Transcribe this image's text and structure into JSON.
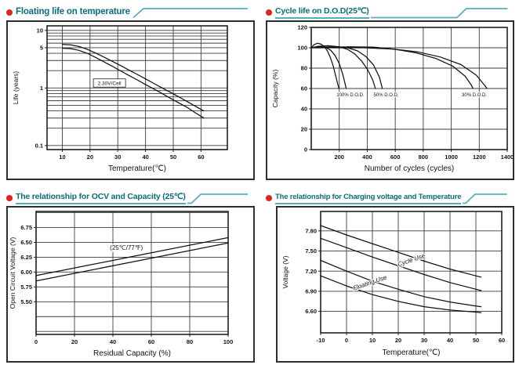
{
  "colors": {
    "title": "#0a6e7d",
    "rule": "#54aebd",
    "dot": "#e2231a",
    "grid": "#3c3c3c",
    "axis": "#1f1f1f",
    "line": "#111111",
    "box_border": "#2e2e2e",
    "page_bg": "#ffffff"
  },
  "panels": [
    {
      "title": "Floating life on temperature"
    },
    {
      "title": "Cycle life on D.O.D(25℃)"
    },
    {
      "title": "The relationship  for OCV and Capacity (25℃)"
    },
    {
      "title": "The relationship for Charging voltage and Temperature"
    }
  ],
  "chart_data": [
    {
      "type": "line",
      "title": "Floating life on temperature",
      "xlabel": "Temperature(℃)",
      "ylabel": "Life (years)",
      "x": {
        "min": 4.5,
        "max": 69.5,
        "grid": [
          10,
          20,
          30,
          40,
          50,
          60
        ],
        "ticks": [
          [
            10,
            "10"
          ],
          [
            20,
            "20"
          ],
          [
            30,
            "30"
          ],
          [
            40,
            "40"
          ],
          [
            50,
            "50"
          ],
          [
            60,
            "60"
          ]
        ]
      },
      "y": {
        "scale": "log",
        "min": 0.085,
        "max": 12,
        "grid": [
          0.1,
          0.2,
          0.3,
          0.4,
          0.5,
          0.6,
          0.7,
          0.8,
          0.9,
          1,
          2,
          3,
          4,
          5,
          6,
          7,
          8,
          9,
          10
        ],
        "ticks": [
          [
            10,
            "10"
          ],
          [
            5,
            "5"
          ],
          [
            1,
            "1"
          ],
          [
            0.1,
            "0.1"
          ]
        ]
      },
      "series": [
        {
          "name": "float-life-upper",
          "points": [
            [
              10,
              5.7
            ],
            [
              13,
              5.6
            ],
            [
              16,
              5.25
            ],
            [
              19,
              4.7
            ],
            [
              22,
              4.05
            ],
            [
              25,
              3.45
            ],
            [
              28,
              2.9
            ],
            [
              31,
              2.45
            ],
            [
              34,
              2.05
            ],
            [
              37,
              1.72
            ],
            [
              40,
              1.44
            ],
            [
              43,
              1.2
            ],
            [
              46,
              1.0
            ],
            [
              49,
              0.84
            ],
            [
              52,
              0.7
            ],
            [
              55,
              0.58
            ],
            [
              58,
              0.48
            ],
            [
              61,
              0.4
            ]
          ]
        },
        {
          "name": "float-life-lower",
          "points": [
            [
              10,
              4.9
            ],
            [
              13,
              4.82
            ],
            [
              16,
              4.5
            ],
            [
              19,
              4.0
            ],
            [
              22,
              3.4
            ],
            [
              25,
              2.85
            ],
            [
              28,
              2.38
            ],
            [
              31,
              1.98
            ],
            [
              34,
              1.65
            ],
            [
              37,
              1.38
            ],
            [
              40,
              1.15
            ],
            [
              43,
              0.96
            ],
            [
              46,
              0.8
            ],
            [
              49,
              0.66
            ],
            [
              52,
              0.55
            ],
            [
              55,
              0.46
            ],
            [
              58,
              0.37
            ],
            [
              61,
              0.3
            ]
          ]
        }
      ],
      "annotations": [
        {
          "text": "2.30V/Cell",
          "x": 27,
          "y": 1.22,
          "fs": 6.5,
          "boxed": true
        }
      ]
    },
    {
      "type": "line",
      "title": "Cycle life on D.O.D(25℃)",
      "xlabel": "Number of cycles (cycles)",
      "ylabel": "Capacity  (%)",
      "x": {
        "min": 0,
        "max": 1400,
        "grid": [
          200,
          400,
          600,
          800,
          1000,
          1200
        ],
        "ticks": [
          [
            200,
            "200"
          ],
          [
            400,
            "400"
          ],
          [
            600,
            "600"
          ],
          [
            800,
            "800"
          ],
          [
            1000,
            "1000"
          ],
          [
            1200,
            "1200"
          ],
          [
            1400,
            "1400"
          ]
        ]
      },
      "y": {
        "scale": "linear",
        "min": 0,
        "max": 120,
        "grid": [
          20,
          40,
          60,
          80,
          100
        ],
        "ticks": [
          [
            0,
            "0"
          ],
          [
            20,
            "20"
          ],
          [
            40,
            "40"
          ],
          [
            60,
            "60"
          ],
          [
            80,
            "80"
          ],
          [
            100,
            "100"
          ],
          [
            120,
            "120"
          ]
        ]
      },
      "series": [
        {
          "name": "dod-100-curve-1",
          "points": [
            [
              0,
              100
            ],
            [
              20,
              103
            ],
            [
              45,
              104.5
            ],
            [
              70,
              103.5
            ],
            [
              95,
              101
            ],
            [
              115,
              97
            ],
            [
              135,
              91
            ],
            [
              155,
              83
            ],
            [
              175,
              72
            ],
            [
              190,
              64
            ],
            [
              198,
              60
            ]
          ]
        },
        {
          "name": "dod-100-curve-2",
          "points": [
            [
              0,
              100
            ],
            [
              30,
              100.5
            ],
            [
              70,
              101
            ],
            [
              110,
              100
            ],
            [
              140,
              97.5
            ],
            [
              170,
              92.5
            ],
            [
              200,
              84.5
            ],
            [
              225,
              74
            ],
            [
              243,
              64
            ],
            [
              250,
              60
            ]
          ]
        },
        {
          "name": "dod-50-curve-1",
          "points": [
            [
              0,
              100
            ],
            [
              50,
              101.5
            ],
            [
              120,
              102
            ],
            [
              200,
              101
            ],
            [
              260,
              98.5
            ],
            [
              310,
              94
            ],
            [
              360,
              87
            ],
            [
              405,
              78
            ],
            [
              440,
              68
            ],
            [
              458,
              60
            ]
          ]
        },
        {
          "name": "dod-50-curve-2",
          "points": [
            [
              0,
              100
            ],
            [
              60,
              100.5
            ],
            [
              160,
              101
            ],
            [
              260,
              100
            ],
            [
              330,
              97
            ],
            [
              390,
              91.5
            ],
            [
              445,
              83
            ],
            [
              487,
              71
            ],
            [
              508,
              60
            ]
          ]
        },
        {
          "name": "dod-30-curve-1",
          "points": [
            [
              0,
              100
            ],
            [
              120,
              100.5
            ],
            [
              280,
              101
            ],
            [
              450,
              100.5
            ],
            [
              600,
              98.5
            ],
            [
              750,
              95
            ],
            [
              890,
              89.5
            ],
            [
              1010,
              82
            ],
            [
              1100,
              72
            ],
            [
              1145,
              63
            ],
            [
              1155,
              60
            ]
          ]
        },
        {
          "name": "dod-30-curve-2",
          "points": [
            [
              0,
              100
            ],
            [
              150,
              100
            ],
            [
              380,
              100
            ],
            [
              580,
              98.8
            ],
            [
              760,
              96
            ],
            [
              920,
              91
            ],
            [
              1070,
              83.5
            ],
            [
              1180,
              73
            ],
            [
              1245,
              62
            ],
            [
              1255,
              60
            ]
          ]
        }
      ],
      "annotations": [
        {
          "text": "100% D.O.D.",
          "x": 280,
          "y": 54,
          "fs": 6
        },
        {
          "text": "50% D.O.D.",
          "x": 535,
          "y": 54,
          "fs": 6
        },
        {
          "text": "30% D.O.D.",
          "x": 1165,
          "y": 54,
          "fs": 6
        }
      ]
    },
    {
      "type": "line",
      "title": "The relationship for OCV and Capacity (25℃)",
      "xlabel": "Residual Capacity (%)",
      "ylabel": "Open Circuit Voltage (V)",
      "x": {
        "min": 0,
        "max": 100,
        "grid": [
          20,
          40,
          60,
          80
        ],
        "ticks": [
          [
            0,
            "0"
          ],
          [
            20,
            "20"
          ],
          [
            40,
            "40"
          ],
          [
            60,
            "60"
          ],
          [
            80,
            "80"
          ],
          [
            100,
            "100"
          ]
        ]
      },
      "y": {
        "scale": "linear",
        "min": 4.95,
        "max": 7.02,
        "grid": [
          5.0,
          5.25,
          5.5,
          5.75,
          6.0,
          6.25,
          6.5,
          6.75,
          7.0
        ],
        "ticks": [
          [
            6.75,
            "6.75"
          ],
          [
            6.5,
            "6.50"
          ],
          [
            6.25,
            "6.25"
          ],
          [
            6.0,
            "6.00"
          ],
          [
            5.75,
            "5.75"
          ],
          [
            5.5,
            "5.50"
          ]
        ]
      },
      "series": [
        {
          "name": "ocv-upper",
          "points": [
            [
              0,
              5.94
            ],
            [
              50,
              6.26
            ],
            [
              100,
              6.58
            ]
          ]
        },
        {
          "name": "ocv-lower",
          "points": [
            [
              0,
              5.85
            ],
            [
              50,
              6.17
            ],
            [
              100,
              6.49
            ]
          ]
        }
      ],
      "annotations": [
        {
          "text": "(25℃/77℉)",
          "x": 47,
          "y": 6.41,
          "fs": 8
        }
      ]
    },
    {
      "type": "line",
      "title": "The relationship for Charging voltage and Temperature",
      "xlabel": "Temperature(℃)",
      "ylabel": "Voltage (V)",
      "x": {
        "min": -10,
        "max": 60,
        "grid": [
          0,
          10,
          20,
          30,
          40,
          50
        ],
        "ticks": [
          [
            -10,
            "-10"
          ],
          [
            0,
            "0"
          ],
          [
            10,
            "10"
          ],
          [
            20,
            "20"
          ],
          [
            30,
            "30"
          ],
          [
            40,
            "40"
          ],
          [
            50,
            "50"
          ],
          [
            60,
            "60"
          ]
        ]
      },
      "y": {
        "scale": "linear",
        "min": 6.28,
        "max": 8.09,
        "grid": [
          6.6,
          6.9,
          7.2,
          7.5,
          7.8
        ],
        "ticks": [
          [
            7.8,
            "7.80"
          ],
          [
            7.5,
            "7.50"
          ],
          [
            7.2,
            "7.20"
          ],
          [
            6.9,
            "6.90"
          ],
          [
            6.6,
            "6.60"
          ]
        ]
      },
      "series": [
        {
          "name": "cycle-use-upper",
          "points": [
            [
              -10,
              7.88
            ],
            [
              0,
              7.74
            ],
            [
              10,
              7.61
            ],
            [
              20,
              7.48
            ],
            [
              30,
              7.35
            ],
            [
              40,
              7.23
            ],
            [
              50,
              7.13
            ],
            [
              52,
              7.11
            ]
          ]
        },
        {
          "name": "cycle-use-lower",
          "points": [
            [
              -10,
              7.69
            ],
            [
              0,
              7.55
            ],
            [
              10,
              7.41
            ],
            [
              20,
              7.28
            ],
            [
              30,
              7.15
            ],
            [
              40,
              7.03
            ],
            [
              50,
              6.93
            ],
            [
              52,
              6.91
            ]
          ]
        },
        {
          "name": "floating-use-upper",
          "points": [
            [
              -10,
              7.36
            ],
            [
              0,
              7.2
            ],
            [
              10,
              7.05
            ],
            [
              20,
              6.93
            ],
            [
              30,
              6.82
            ],
            [
              40,
              6.74
            ],
            [
              50,
              6.68
            ],
            [
              52,
              6.67
            ]
          ]
        },
        {
          "name": "floating-use-lower",
          "points": [
            [
              -10,
              7.13
            ],
            [
              0,
              6.98
            ],
            [
              10,
              6.85
            ],
            [
              20,
              6.75
            ],
            [
              30,
              6.67
            ],
            [
              40,
              6.62
            ],
            [
              50,
              6.59
            ],
            [
              52,
              6.58
            ]
          ]
        }
      ],
      "annotations": [
        {
          "text": "Cycle Use",
          "x": 25,
          "y": 7.37,
          "rot": -19,
          "fs": 8,
          "italic": true
        },
        {
          "text": "Floating Use",
          "x": 9,
          "y": 7.03,
          "rot": -19,
          "fs": 8,
          "italic": true
        }
      ]
    }
  ]
}
